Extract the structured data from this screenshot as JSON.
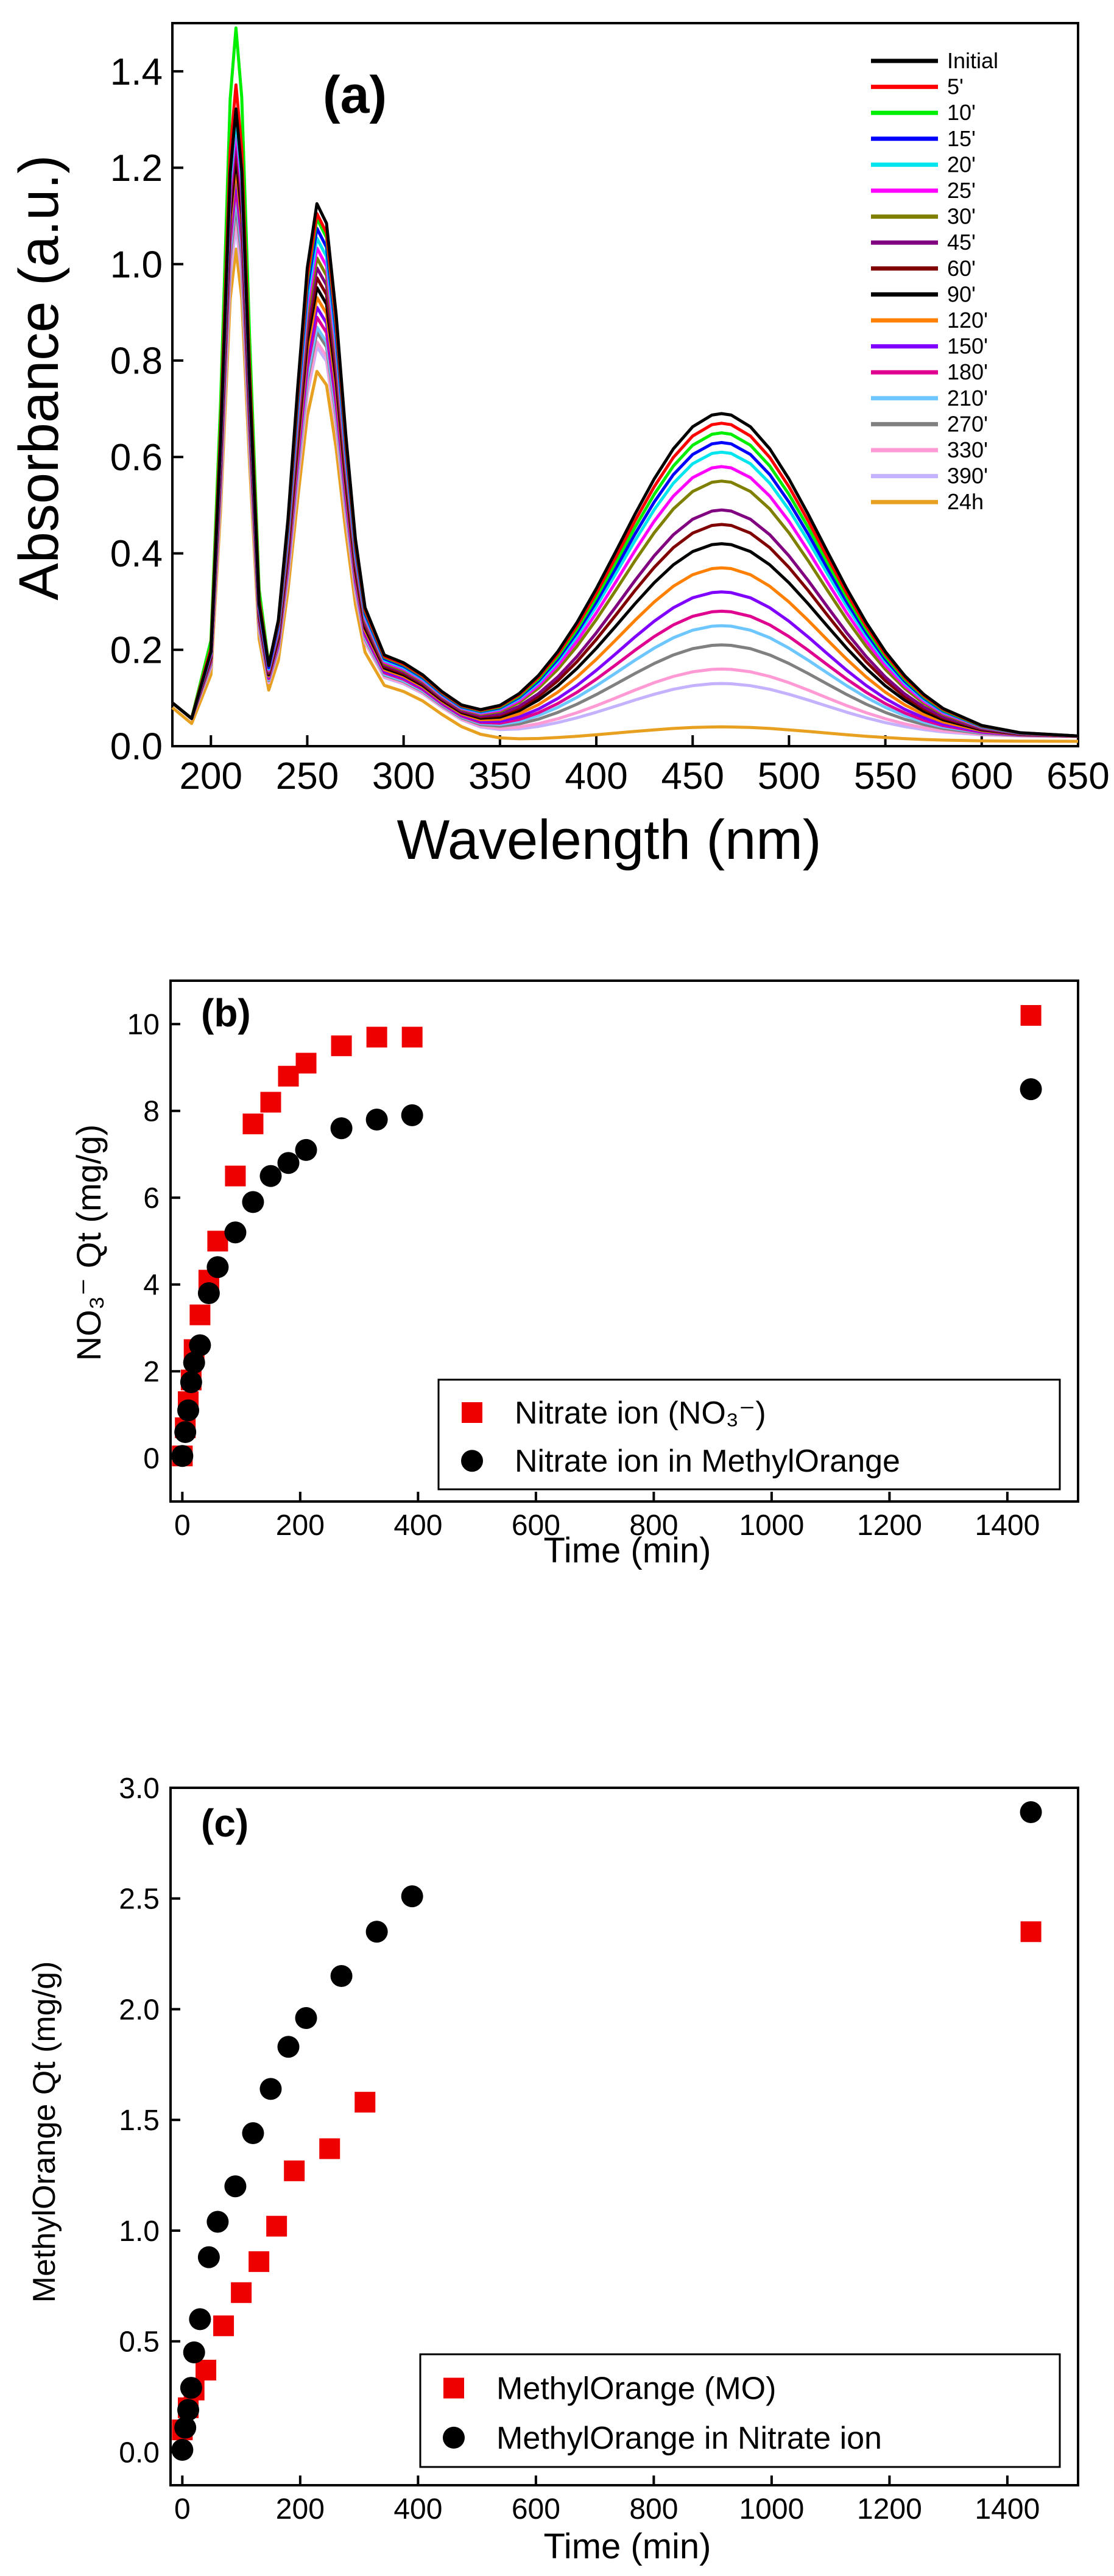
{
  "chart_data": [
    {
      "type": "line",
      "panel_label": "(a)",
      "xlabel": "Wavelength (nm)",
      "ylabel": "Absorbance (a.u.)",
      "xlim": [
        180,
        650
      ],
      "ylim": [
        0.0,
        1.5
      ],
      "xticks": [
        200,
        250,
        300,
        350,
        400,
        450,
        500,
        550,
        600,
        650
      ],
      "yticks": [
        0.0,
        0.2,
        0.4,
        0.6,
        0.8,
        1.0,
        1.2,
        1.4
      ],
      "xtick_labels": [
        "200",
        "250",
        "300",
        "350",
        "400",
        "450",
        "500",
        "550",
        "600",
        "650"
      ],
      "ytick_labels": [
        "0.0",
        "0.2",
        "0.4",
        "0.6",
        "0.8",
        "1.0",
        "1.2",
        "1.4"
      ],
      "legend_position": "top-right",
      "x": [
        180,
        190,
        200,
        205,
        210,
        213,
        216,
        220,
        225,
        230,
        235,
        240,
        245,
        250,
        255,
        260,
        265,
        270,
        275,
        280,
        290,
        300,
        310,
        320,
        330,
        340,
        350,
        360,
        370,
        380,
        390,
        400,
        410,
        420,
        430,
        440,
        450,
        460,
        465,
        470,
        480,
        490,
        500,
        510,
        520,
        530,
        540,
        550,
        560,
        570,
        580,
        600,
        620,
        650
      ],
      "series": [
        {
          "name": "Initial",
          "color": "#000000",
          "peak1": 1.3,
          "peak2": 1.08,
          "peak3": 0.67,
          "base": 0.02
        },
        {
          "name": "5'",
          "color": "#ff0000",
          "peak1": 1.35,
          "peak2": 1.06,
          "peak3": 0.65,
          "base": 0.02
        },
        {
          "name": "10'",
          "color": "#00ee00",
          "peak1": 1.47,
          "peak2": 1.05,
          "peak3": 0.63,
          "base": 0.02
        },
        {
          "name": "15'",
          "color": "#0000ff",
          "peak1": 1.3,
          "peak2": 1.03,
          "peak3": 0.61,
          "base": 0.02
        },
        {
          "name": "20'",
          "color": "#00e5ee",
          "peak1": 1.28,
          "peak2": 1.01,
          "peak3": 0.59,
          "base": 0.02
        },
        {
          "name": "25'",
          "color": "#ff00ff",
          "peak1": 1.26,
          "peak2": 0.99,
          "peak3": 0.56,
          "base": 0.02
        },
        {
          "name": "30'",
          "color": "#808000",
          "peak1": 1.26,
          "peak2": 0.97,
          "peak3": 0.53,
          "base": 0.02
        },
        {
          "name": "45'",
          "color": "#800080",
          "peak1": 1.24,
          "peak2": 0.95,
          "peak3": 0.47,
          "base": 0.02
        },
        {
          "name": "60'",
          "color": "#800000",
          "peak1": 1.22,
          "peak2": 0.93,
          "peak3": 0.44,
          "base": 0.02
        },
        {
          "name": "90'",
          "color": "#000000",
          "peak1": 1.2,
          "peak2": 0.91,
          "peak3": 0.4,
          "base": 0.02
        },
        {
          "name": "120'",
          "color": "#ff8000",
          "peak1": 1.18,
          "peak2": 0.89,
          "peak3": 0.35,
          "base": 0.02
        },
        {
          "name": "150'",
          "color": "#8000ff",
          "peak1": 1.16,
          "peak2": 0.87,
          "peak3": 0.3,
          "base": 0.02
        },
        {
          "name": "180'",
          "color": "#e00090",
          "peak1": 1.14,
          "peak2": 0.85,
          "peak3": 0.26,
          "base": 0.02
        },
        {
          "name": "210'",
          "color": "#6ec6ff",
          "peak1": 1.12,
          "peak2": 0.83,
          "peak3": 0.23,
          "base": 0.02
        },
        {
          "name": "270'",
          "color": "#808080",
          "peak1": 1.1,
          "peak2": 0.82,
          "peak3": 0.19,
          "base": 0.02
        },
        {
          "name": "330'",
          "color": "#ff9ad5",
          "peak1": 1.08,
          "peak2": 0.8,
          "peak3": 0.14,
          "base": 0.02
        },
        {
          "name": "390'",
          "color": "#c4b2ff",
          "peak1": 1.06,
          "peak2": 0.79,
          "peak3": 0.11,
          "base": 0.02
        },
        {
          "name": "24h",
          "color": "#e8a020",
          "peak1": 1.02,
          "peak2": 0.75,
          "peak3": 0.03,
          "base": 0.01
        }
      ]
    },
    {
      "type": "scatter",
      "panel_label": "(b)",
      "xlabel": "Time (min)",
      "ylabel": "NO₃⁻ Qt (mg/g)",
      "xlim": [
        -20,
        1520
      ],
      "ylim": [
        -1,
        11
      ],
      "xticks": [
        0,
        200,
        400,
        600,
        800,
        1000,
        1200,
        1400
      ],
      "yticks": [
        0,
        2,
        4,
        6,
        8,
        10
      ],
      "xtick_labels": [
        "0",
        "200",
        "400",
        "600",
        "800",
        "1000",
        "1200",
        "1400"
      ],
      "ytick_labels": [
        "0",
        "2",
        "4",
        "6",
        "8",
        "10"
      ],
      "legend_position": "bottom-right",
      "series": [
        {
          "name": "Nitrate ion (NO₃⁻)",
          "marker": "square",
          "color": "#ee0000",
          "x": [
            0,
            5,
            10,
            15,
            20,
            30,
            45,
            60,
            90,
            120,
            150,
            180,
            210,
            270,
            330,
            390,
            1440
          ],
          "y": [
            0.05,
            0.7,
            1.3,
            1.8,
            2.5,
            3.3,
            4.1,
            5.0,
            6.5,
            7.7,
            8.2,
            8.8,
            9.1,
            9.5,
            9.7,
            9.7,
            10.2
          ]
        },
        {
          "name": "Nitrate ion in MethylOrange",
          "marker": "circle",
          "color": "#000000",
          "x": [
            0,
            5,
            10,
            15,
            20,
            30,
            45,
            60,
            90,
            120,
            150,
            180,
            210,
            270,
            330,
            390,
            1440
          ],
          "y": [
            0.05,
            0.6,
            1.1,
            1.75,
            2.2,
            2.6,
            3.8,
            4.4,
            5.2,
            5.9,
            6.5,
            6.8,
            7.1,
            7.6,
            7.8,
            7.9,
            8.5
          ]
        }
      ]
    },
    {
      "type": "scatter",
      "panel_label": "(c)",
      "xlabel": "Time (min)",
      "ylabel": "MethylOrange Qt (mg/g)",
      "xlim": [
        -20,
        1520
      ],
      "ylim": [
        -0.15,
        3.0
      ],
      "xticks": [
        0,
        200,
        400,
        600,
        800,
        1000,
        1200,
        1400
      ],
      "yticks": [
        0.0,
        0.5,
        1.0,
        1.5,
        2.0,
        2.5,
        3.0
      ],
      "xtick_labels": [
        "0",
        "200",
        "400",
        "600",
        "800",
        "1000",
        "1200",
        "1400"
      ],
      "ytick_labels": [
        "0.0",
        "0.5",
        "1.0",
        "1.5",
        "2.0",
        "2.5",
        "3.0"
      ],
      "legend_position": "bottom-right",
      "series": [
        {
          "name": "MethylOrange (MO)",
          "marker": "square",
          "color": "#ee0000",
          "x": [
            0,
            10,
            20,
            40,
            70,
            100,
            130,
            160,
            190,
            250,
            310,
            1440
          ],
          "y": [
            0.1,
            0.2,
            0.28,
            0.37,
            0.57,
            0.72,
            0.86,
            1.02,
            1.27,
            1.37,
            1.58,
            2.35
          ]
        },
        {
          "name": "MethylOrange in Nitrate ion",
          "marker": "circle",
          "color": "#000000",
          "x": [
            0,
            5,
            10,
            15,
            20,
            30,
            45,
            60,
            90,
            120,
            150,
            180,
            210,
            270,
            330,
            390,
            1440
          ],
          "y": [
            0.01,
            0.11,
            0.19,
            0.29,
            0.45,
            0.6,
            0.88,
            1.04,
            1.2,
            1.44,
            1.64,
            1.83,
            1.96,
            2.15,
            2.35,
            2.51,
            2.89
          ]
        }
      ]
    }
  ]
}
